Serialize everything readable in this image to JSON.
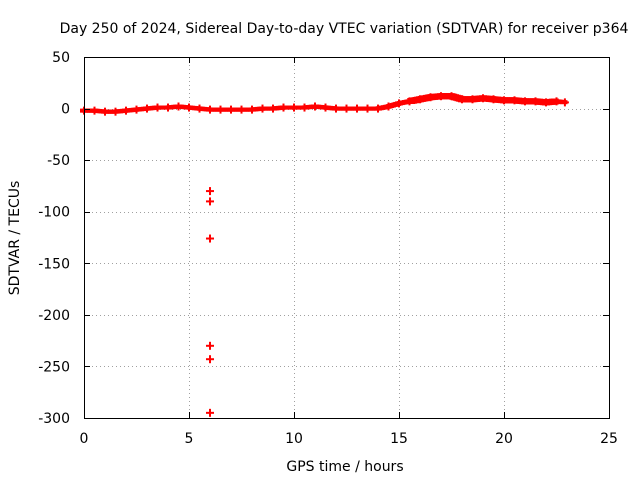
{
  "chart_data": {
    "type": "scatter",
    "title": "Day 250 of 2024, Sidereal Day-to-day VTEC variation (SDTVAR) for receiver p364",
    "xlabel": "GPS time / hours",
    "ylabel": "SDTVAR / TECUs",
    "xlim": [
      0,
      25
    ],
    "ylim": [
      -300,
      50
    ],
    "xticks": [
      0,
      5,
      10,
      15,
      20,
      25
    ],
    "yticks": [
      -300,
      -250,
      -200,
      -150,
      -100,
      -50,
      0,
      50
    ],
    "grid": true,
    "marker": "+",
    "color": "#ff0000",
    "series": [
      {
        "name": "SDTVAR",
        "x": [
          0.0,
          0.5,
          1.0,
          1.5,
          2.0,
          2.5,
          3.0,
          3.5,
          4.0,
          4.5,
          5.0,
          5.5,
          6.0,
          6.5,
          7.0,
          7.5,
          8.0,
          8.5,
          9.0,
          9.5,
          10.0,
          10.5,
          11.0,
          11.5,
          12.0,
          12.5,
          13.0,
          13.5,
          14.0,
          14.5,
          15.0,
          15.5,
          16.0,
          16.5,
          17.0,
          17.5,
          18.0,
          18.5,
          19.0,
          19.5,
          20.0,
          20.5,
          21.0,
          21.5,
          22.0,
          22.5,
          22.9,
          6.0,
          6.0,
          6.0,
          6.0,
          6.0,
          6.0
        ],
        "y": [
          -2,
          -2,
          -3,
          -3,
          -2,
          -1,
          0,
          1,
          1,
          2,
          1,
          0,
          -1,
          -1,
          -1,
          -1,
          -1,
          0,
          0,
          1,
          1,
          1,
          2,
          1,
          0,
          0,
          0,
          0,
          0,
          2,
          5,
          7,
          9,
          11,
          12,
          12,
          9,
          9,
          10,
          9,
          8,
          8,
          7,
          7,
          6,
          7,
          6,
          -80,
          -90,
          -126,
          -230,
          -243,
          -295
        ]
      }
    ]
  }
}
